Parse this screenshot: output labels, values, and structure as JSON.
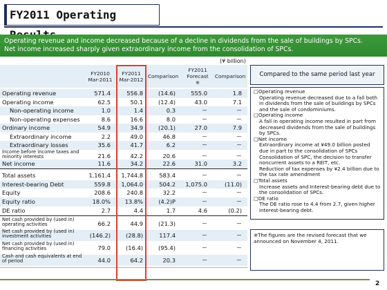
{
  "title": "FY2011 Operating Results",
  "banner": {
    "line1": "Operating revenue and income decreased because of a decline in dividends from the sale of buildings by SPCs.",
    "line2": "Net income increased sharply given extraordinary income from the consolidation of SPCs."
  },
  "unit": "(¥ billion)",
  "headers": {
    "fy2010": [
      "FY2010",
      "Mar-2011"
    ],
    "fy2011": [
      "FY2011",
      "Mar-2012"
    ],
    "comparison": "Comparison",
    "forecast": [
      "FY2011",
      "Forecast",
      "※"
    ],
    "comparison2": "Comparison"
  },
  "rows": [
    {
      "label": "Operating revenue",
      "fy2010": "571.4",
      "fy2011": "556.8",
      "cmp": "(14.6)",
      "fc": "555.0",
      "cmp2": "1.8"
    },
    {
      "label": "Operating income",
      "fy2010": "62.5",
      "fy2011": "50.1",
      "cmp": "(12.4)",
      "fc": "43.0",
      "cmp2": "7.1"
    },
    {
      "label": "Non-operating income",
      "fy2010": "1.0",
      "fy2011": "1.4",
      "cmp": "0.3",
      "fc": "－",
      "cmp2": "－"
    },
    {
      "label": "Non-operating expenses",
      "fy2010": "8.6",
      "fy2011": "16.6",
      "cmp": "8.0",
      "fc": "－",
      "cmp2": "－"
    },
    {
      "label": "Ordinary income",
      "fy2010": "54.9",
      "fy2011": "34.9",
      "cmp": "(20.1)",
      "fc": "27.0",
      "cmp2": "7.9"
    },
    {
      "label": "Extraordinary income",
      "fy2010": "2.2",
      "fy2011": "49.0",
      "cmp": "46.8",
      "fc": "－",
      "cmp2": "－"
    },
    {
      "label": "Extraordinary losses",
      "fy2010": "35.6",
      "fy2011": "41.7",
      "cmp": "6.2",
      "fc": "－",
      "cmp2": "－"
    },
    {
      "label": "Income before income taxes and minority interests",
      "fy2010": "21.6",
      "fy2011": "42.2",
      "cmp": "20.6",
      "fc": "－",
      "cmp2": "－"
    },
    {
      "label": "Net income",
      "fy2010": "11.6",
      "fy2011": "34.2",
      "cmp": "22.6",
      "fc": "31.0",
      "cmp2": "3.2"
    },
    {
      "label": "Total assets",
      "fy2010": "1,161.4",
      "fy2011": "1,744.8",
      "cmp": "583.4",
      "fc": "－",
      "cmp2": "－"
    },
    {
      "label": "Interest-bearing Debt",
      "fy2010": "559.8",
      "fy2011": "1,064.0",
      "cmp": "504.2",
      "fc": "1,075.0",
      "cmp2": "(11.0)"
    },
    {
      "label": "Equity",
      "fy2010": "208.6",
      "fy2011": "240.8",
      "cmp": "32.2",
      "fc": "－",
      "cmp2": "－"
    },
    {
      "label": "Equity ratio",
      "fy2010": "18.0%",
      "fy2011": "13.8%",
      "cmp": "(4.2)P",
      "fc": "－",
      "cmp2": "－"
    },
    {
      "label": "DE ratio",
      "fy2010": "2.7",
      "fy2011": "4.4",
      "cmp": "1.7",
      "fc": "4.6",
      "cmp2": "(0.2)"
    },
    {
      "label": "Net cash provided by (used in) operating activities",
      "fy2010": "66.2",
      "fy2011": "44.9",
      "cmp": "(21.3)",
      "fc": "－",
      "cmp2": "－"
    },
    {
      "label": "Net cash provided by (used in) investment activities",
      "fy2010": "(146.2)",
      "fy2011": "(28.8)",
      "cmp": "117.4",
      "fc": "－",
      "cmp2": "－"
    },
    {
      "label": "Net cash provided by (used in) financing activities",
      "fy2010": "79.0",
      "fy2011": "(16.4)",
      "cmp": "(95.4)",
      "fc": "－",
      "cmp2": "－"
    },
    {
      "label": "Cash and cash equivalents at end of period",
      "fy2010": "44.0",
      "fy2011": "64.2",
      "cmp": "20.3",
      "fc": "－",
      "cmp2": "－"
    }
  ],
  "right_header": "Compared to the same period last year",
  "notes": [
    {
      "head": "□Operating revenue",
      "text": "Operating revenue decreased due to a fall both in dividends from the sale of buildings by SPCs and the sale of condominiums."
    },
    {
      "head": "□Operating income",
      "text": "A fall in operating income resulted in part from decreased dividends from the sale of buildings by SPCs."
    },
    {
      "head": "□Net income",
      "text": "Extraordinary income at ¥49.0 billion posted due in part to the consolidation of SPCs"
    },
    {
      "head": "",
      "text": "Consolidation of SPC, the decision to transfer noncurrent assets to a REIT, etc."
    },
    {
      "head": "",
      "text": "Reduction of tax expenses by ¥2.4 billion due to the tax rate amendment"
    },
    {
      "head": "□Total assets",
      "text": "Increase assets and Interest-bearing debt due to the consolidation of SPCs."
    },
    {
      "head": "□DE ratio",
      "text": "The DE ratio rose to 4.4 from 2.7, given higher interest-bearing debt."
    }
  ],
  "footnote": "※The figures are the revised forecast that we announced on November 4, 2011.",
  "page_number": "2"
}
